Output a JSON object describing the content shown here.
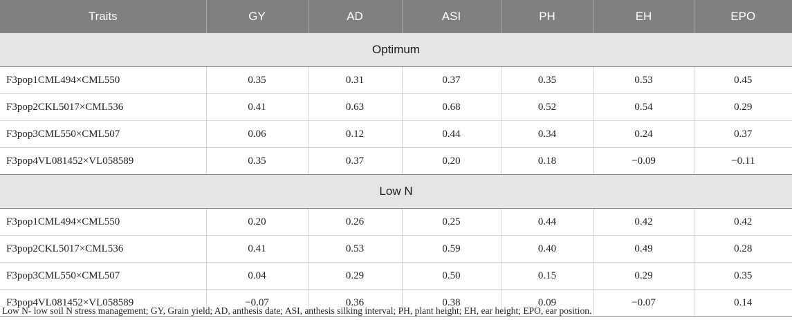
{
  "table": {
    "headers": [
      "Traits",
      "GY",
      "AD",
      "ASI",
      "PH",
      "EH",
      "EPO"
    ],
    "sections": [
      {
        "title": "Optimum",
        "rows": [
          [
            "F3pop1CML494×CML550",
            "0.35",
            "0.31",
            "0.37",
            "0.35",
            "0.53",
            "0.45"
          ],
          [
            "F3pop2CKL5017×CML536",
            "0.41",
            "0.63",
            "0.68",
            "0.52",
            "0.54",
            "0.29"
          ],
          [
            "F3pop3CML550×CML507",
            "0.06",
            "0.12",
            "0.44",
            "0.34",
            "0.24",
            "0.37"
          ],
          [
            "F3pop4VL081452×VL058589",
            "0.35",
            "0.37",
            "0.20",
            "0.18",
            "−0.09",
            "−0.11"
          ]
        ]
      },
      {
        "title": "Low N",
        "rows": [
          [
            "F3pop1CML494×CML550",
            "0.20",
            "0.26",
            "0.25",
            "0.44",
            "0.42",
            "0.42"
          ],
          [
            "F3pop2CKL5017×CML536",
            "0.41",
            "0.53",
            "0.59",
            "0.40",
            "0.49",
            "0.28"
          ],
          [
            "F3pop3CML550×CML507",
            "0.04",
            "0.29",
            "0.50",
            "0.15",
            "0.29",
            "0.35"
          ],
          [
            "F3pop4VL081452×VL058589",
            "−0.07",
            "0.36",
            "0.38",
            "0.09",
            "−0.07",
            "0.14"
          ]
        ]
      }
    ]
  },
  "footnote": "Low N- low soil N stress management; GY, Grain yield; AD, anthesis date; ASI, anthesis silking interval; PH, plant height; EH, ear height; EPO, ear position.",
  "colors": {
    "header_bg": "#7f8081",
    "header_text": "#ffffff",
    "section_bg": "#e5e5e5"
  }
}
